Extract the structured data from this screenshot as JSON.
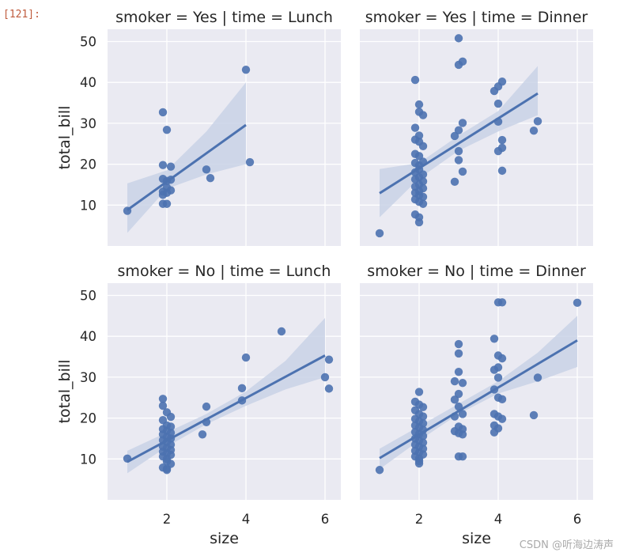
{
  "cell": {
    "prompt": "[121]:"
  },
  "watermark": "CSDN @听海边涛声",
  "style": {
    "panel_bg": "#eaeaf2",
    "grid": "#ffffff",
    "marker": "#4c72b0",
    "band": "#c9d2e6"
  },
  "chart_data": [
    {
      "type": "scatter",
      "title": "smoker = Yes | time = Lunch",
      "xlabel": "",
      "ylabel": "total_bill",
      "xlim": [
        0.5,
        6.4
      ],
      "ylim": [
        0,
        53
      ],
      "xticks": [
        2,
        4,
        6
      ],
      "yticks": [
        10,
        20,
        30,
        40,
        50
      ],
      "grid": true,
      "points": [
        [
          1.0,
          8.6
        ],
        [
          1.9,
          32.7
        ],
        [
          2.0,
          28.4
        ],
        [
          1.9,
          19.8
        ],
        [
          2.1,
          19.4
        ],
        [
          1.9,
          16.4
        ],
        [
          2.0,
          15.9
        ],
        [
          2.1,
          16.2
        ],
        [
          2.0,
          14.3
        ],
        [
          1.9,
          13.3
        ],
        [
          2.0,
          13.0
        ],
        [
          2.1,
          13.6
        ],
        [
          1.9,
          12.5
        ],
        [
          1.9,
          10.3
        ],
        [
          2.0,
          10.3
        ],
        [
          3.0,
          18.7
        ],
        [
          3.1,
          16.6
        ],
        [
          4.0,
          43.1
        ],
        [
          4.1,
          20.5
        ]
      ],
      "regression": {
        "x": [
          1,
          4
        ],
        "y": [
          8.8,
          29.6
        ]
      },
      "ci": {
        "x": [
          1,
          2,
          3,
          4
        ],
        "upper": [
          15.3,
          18.5,
          28.0,
          40.0
        ],
        "lower": [
          3.2,
          14.0,
          17.5,
          20.0
        ]
      }
    },
    {
      "type": "scatter",
      "title": "smoker = Yes | time = Dinner",
      "xlabel": "",
      "ylabel": "",
      "xlim": [
        0.5,
        6.4
      ],
      "ylim": [
        0,
        53
      ],
      "xticks": [
        2,
        4,
        6
      ],
      "yticks": [
        10,
        20,
        30,
        40,
        50
      ],
      "grid": true,
      "points": [
        [
          1.0,
          3.1
        ],
        [
          1.9,
          40.6
        ],
        [
          2.0,
          34.6
        ],
        [
          2.0,
          32.8
        ],
        [
          2.1,
          32.0
        ],
        [
          1.9,
          28.9
        ],
        [
          2.0,
          27.0
        ],
        [
          1.9,
          26.0
        ],
        [
          2.0,
          25.5
        ],
        [
          2.1,
          24.4
        ],
        [
          1.9,
          22.5
        ],
        [
          2.0,
          22.0
        ],
        [
          2.1,
          20.6
        ],
        [
          1.9,
          20.3
        ],
        [
          2.0,
          19.7
        ],
        [
          2.0,
          18.7
        ],
        [
          1.9,
          18.0
        ],
        [
          2.1,
          17.5
        ],
        [
          2.0,
          16.8
        ],
        [
          1.9,
          16.3
        ],
        [
          2.1,
          15.8
        ],
        [
          2.0,
          15.0
        ],
        [
          1.9,
          14.5
        ],
        [
          2.1,
          14.1
        ],
        [
          2.0,
          13.4
        ],
        [
          1.9,
          13.0
        ],
        [
          2.0,
          12.4
        ],
        [
          2.1,
          12.0
        ],
        [
          1.9,
          11.4
        ],
        [
          2.0,
          10.8
        ],
        [
          2.1,
          10.3
        ],
        [
          1.9,
          7.7
        ],
        [
          2.0,
          7.0
        ],
        [
          2.0,
          5.8
        ],
        [
          3.0,
          50.8
        ],
        [
          3.0,
          44.3
        ],
        [
          3.1,
          45.1
        ],
        [
          3.1,
          30.1
        ],
        [
          3.0,
          28.3
        ],
        [
          2.9,
          26.9
        ],
        [
          3.0,
          23.2
        ],
        [
          3.0,
          21.0
        ],
        [
          3.1,
          18.2
        ],
        [
          2.9,
          15.7
        ],
        [
          4.0,
          39.0
        ],
        [
          4.1,
          40.2
        ],
        [
          3.9,
          37.9
        ],
        [
          4.0,
          34.8
        ],
        [
          4.0,
          30.4
        ],
        [
          4.1,
          25.9
        ],
        [
          4.1,
          24.0
        ],
        [
          4.0,
          23.2
        ],
        [
          4.1,
          18.4
        ],
        [
          5.0,
          30.5
        ],
        [
          4.9,
          28.2
        ]
      ],
      "regression": {
        "x": [
          1,
          5
        ],
        "y": [
          12.9,
          37.3
        ]
      },
      "ci": {
        "x": [
          1,
          2,
          3,
          4,
          5
        ],
        "upper": [
          18.8,
          20.3,
          27.0,
          33.0,
          44.0
        ],
        "lower": [
          7.0,
          16.5,
          23.3,
          28.0,
          32.0
        ]
      }
    },
    {
      "type": "scatter",
      "title": "smoker = No | time = Lunch",
      "xlabel": "size",
      "ylabel": "total_bill",
      "xlim": [
        0.5,
        6.4
      ],
      "ylim": [
        0,
        53
      ],
      "xticks": [
        2,
        4,
        6
      ],
      "yticks": [
        10,
        20,
        30,
        40,
        50
      ],
      "grid": true,
      "points": [
        [
          1.0,
          10.1
        ],
        [
          1.9,
          24.7
        ],
        [
          1.9,
          23.0
        ],
        [
          2.0,
          21.4
        ],
        [
          2.1,
          20.3
        ],
        [
          1.9,
          19.5
        ],
        [
          2.0,
          18.2
        ],
        [
          2.1,
          17.9
        ],
        [
          1.9,
          17.3
        ],
        [
          2.0,
          16.9
        ],
        [
          2.1,
          16.4
        ],
        [
          1.9,
          16.0
        ],
        [
          2.0,
          15.4
        ],
        [
          2.1,
          15.0
        ],
        [
          1.9,
          14.6
        ],
        [
          2.0,
          14.2
        ],
        [
          2.1,
          13.5
        ],
        [
          1.9,
          13.0
        ],
        [
          2.0,
          12.7
        ],
        [
          2.1,
          12.2
        ],
        [
          1.9,
          11.8
        ],
        [
          2.0,
          11.4
        ],
        [
          2.1,
          11.0
        ],
        [
          1.9,
          10.6
        ],
        [
          2.0,
          10.0
        ],
        [
          2.0,
          9.4
        ],
        [
          2.1,
          8.8
        ],
        [
          1.9,
          7.9
        ],
        [
          2.0,
          7.6
        ],
        [
          2.0,
          7.3
        ],
        [
          3.0,
          22.8
        ],
        [
          3.0,
          19.0
        ],
        [
          2.9,
          16.0
        ],
        [
          4.0,
          34.8
        ],
        [
          3.9,
          27.3
        ],
        [
          3.9,
          24.3
        ],
        [
          4.9,
          41.2
        ],
        [
          6.1,
          34.3
        ],
        [
          6.0,
          30.0
        ],
        [
          6.1,
          27.2
        ]
      ],
      "regression": {
        "x": [
          1,
          6
        ],
        "y": [
          9.3,
          35.3
        ]
      },
      "ci": {
        "x": [
          1,
          2,
          3,
          4,
          5,
          6
        ],
        "upper": [
          12.0,
          16.5,
          21.0,
          26.5,
          34.0,
          44.5
        ],
        "lower": [
          6.5,
          13.0,
          18.5,
          23.0,
          27.0,
          30.0
        ]
      }
    },
    {
      "type": "scatter",
      "title": "smoker = No | time = Dinner",
      "xlabel": "size",
      "ylabel": "",
      "xlim": [
        0.5,
        6.4
      ],
      "ylim": [
        0,
        53
      ],
      "xticks": [
        2,
        4,
        6
      ],
      "yticks": [
        10,
        20,
        30,
        40,
        50
      ],
      "grid": true,
      "points": [
        [
          1.0,
          7.3
        ],
        [
          2.0,
          26.4
        ],
        [
          1.9,
          24.0
        ],
        [
          2.0,
          23.3
        ],
        [
          2.1,
          22.7
        ],
        [
          1.9,
          21.9
        ],
        [
          2.0,
          21.0
        ],
        [
          2.1,
          20.4
        ],
        [
          1.9,
          19.8
        ],
        [
          2.0,
          19.2
        ],
        [
          2.1,
          18.7
        ],
        [
          1.9,
          18.2
        ],
        [
          2.0,
          17.7
        ],
        [
          2.1,
          17.1
        ],
        [
          1.9,
          16.6
        ],
        [
          2.0,
          16.1
        ],
        [
          2.1,
          15.6
        ],
        [
          1.9,
          15.0
        ],
        [
          2.0,
          14.5
        ],
        [
          2.1,
          14.0
        ],
        [
          1.9,
          13.5
        ],
        [
          2.0,
          13.0
        ],
        [
          2.1,
          12.5
        ],
        [
          1.9,
          12.0
        ],
        [
          2.0,
          11.6
        ],
        [
          2.1,
          11.1
        ],
        [
          1.9,
          10.6
        ],
        [
          2.0,
          10.1
        ],
        [
          2.0,
          9.5
        ],
        [
          2.0,
          8.9
        ],
        [
          3.0,
          38.1
        ],
        [
          3.0,
          35.8
        ],
        [
          3.0,
          31.3
        ],
        [
          2.9,
          29.0
        ],
        [
          3.1,
          28.6
        ],
        [
          3.0,
          25.9
        ],
        [
          2.9,
          24.5
        ],
        [
          3.0,
          22.8
        ],
        [
          3.1,
          21.0
        ],
        [
          2.9,
          20.4
        ],
        [
          3.0,
          17.9
        ],
        [
          3.1,
          17.3
        ],
        [
          2.9,
          16.8
        ],
        [
          3.0,
          16.3
        ],
        [
          3.1,
          16.0
        ],
        [
          3.0,
          10.6
        ],
        [
          3.1,
          10.6
        ],
        [
          4.0,
          48.3
        ],
        [
          4.1,
          48.3
        ],
        [
          3.9,
          39.4
        ],
        [
          4.0,
          35.3
        ],
        [
          4.1,
          34.6
        ],
        [
          4.0,
          32.4
        ],
        [
          3.9,
          31.8
        ],
        [
          4.0,
          29.9
        ],
        [
          3.9,
          27.0
        ],
        [
          4.0,
          25.0
        ],
        [
          4.1,
          24.6
        ],
        [
          3.9,
          21.0
        ],
        [
          4.0,
          20.4
        ],
        [
          4.1,
          19.8
        ],
        [
          3.9,
          18.2
        ],
        [
          4.0,
          17.5
        ],
        [
          3.9,
          16.5
        ],
        [
          5.0,
          29.9
        ],
        [
          4.9,
          20.7
        ],
        [
          6.0,
          48.2
        ]
      ],
      "regression": {
        "x": [
          1,
          6
        ],
        "y": [
          10.2,
          39.0
        ]
      },
      "ci": {
        "x": [
          1,
          2,
          3,
          4,
          5,
          6
        ],
        "upper": [
          12.5,
          18.0,
          23.5,
          29.0,
          36.0,
          45.0
        ],
        "lower": [
          7.5,
          14.5,
          21.0,
          26.0,
          29.0,
          32.5
        ]
      }
    }
  ]
}
